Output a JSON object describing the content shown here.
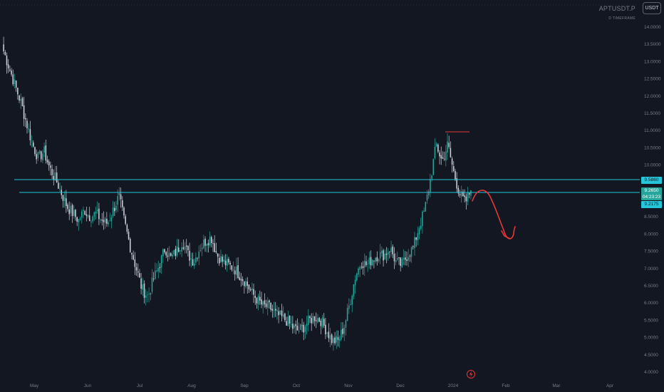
{
  "header": {
    "symbol": "APTUSDT.P",
    "timeframe": "D TIMEFRAME",
    "currency_button": "USDT"
  },
  "price_axis": {
    "labels": [
      "14.0000",
      "13.5000",
      "13.0000",
      "12.5000",
      "12.0000",
      "11.5000",
      "11.0000",
      "10.5000",
      "10.0000",
      "8.5000",
      "8.0000",
      "7.5000",
      "7.0000",
      "6.5000",
      "6.0000",
      "5.5000",
      "5.0000",
      "4.5000",
      "4.0000"
    ],
    "level_upper": "9.5860",
    "level_lower": "9.2175",
    "current_price": "9.2650",
    "countdown": "04:23:23"
  },
  "time_axis": {
    "labels": [
      "May",
      "Jun",
      "Jul",
      "Aug",
      "Sep",
      "Oct",
      "Nov",
      "Dec",
      "2024",
      "Feb",
      "Mar",
      "Apr"
    ]
  },
  "colors": {
    "background": "#131722",
    "up": "#26a69a",
    "down": "#cfd3dc",
    "level_line": "#26c6da",
    "annotation": "#e53935",
    "axis_text": "#787b86"
  },
  "icons": {
    "event_marker": "lightning-icon"
  },
  "chart_data": {
    "type": "candlestick",
    "symbol": "APTUSDT.P",
    "ylim": [
      4.0,
      14.0
    ],
    "x_ticks": [
      "May",
      "Jun",
      "Jul",
      "Aug",
      "Sep",
      "Oct",
      "Nov",
      "Dec",
      "2024",
      "Feb",
      "Mar",
      "Apr"
    ],
    "horizontal_levels": [
      9.586,
      9.2175
    ],
    "resistance_marker": 11.0,
    "current_price": 9.265,
    "closes": [
      13.3,
      12.8,
      12.3,
      11.8,
      11.2,
      10.6,
      10.2,
      10.4,
      9.9,
      9.6,
      9.2,
      8.8,
      8.6,
      8.4,
      8.7,
      8.5,
      8.6,
      8.4,
      8.3,
      8.7,
      9.1,
      8.3,
      7.6,
      7.0,
      6.4,
      6.2,
      6.7,
      7.1,
      7.6,
      7.3,
      7.5,
      7.8,
      7.4,
      7.2,
      7.6,
      7.8,
      7.9,
      7.4,
      7.2,
      7.1,
      7.0,
      6.8,
      6.6,
      6.3,
      6.1,
      5.9,
      5.9,
      5.7,
      5.6,
      5.5,
      5.3,
      5.2,
      5.3,
      5.5,
      5.6,
      5.5,
      5.2,
      4.9,
      4.9,
      5.3,
      6.0,
      6.8,
      7.2,
      7.1,
      7.3,
      7.4,
      7.4,
      7.6,
      7.2,
      7.1,
      7.4,
      7.6,
      8.2,
      8.7,
      9.6,
      10.6,
      10.1,
      10.6,
      9.8,
      9.2,
      8.9,
      9.27
    ],
    "projection": "down-arrow"
  }
}
